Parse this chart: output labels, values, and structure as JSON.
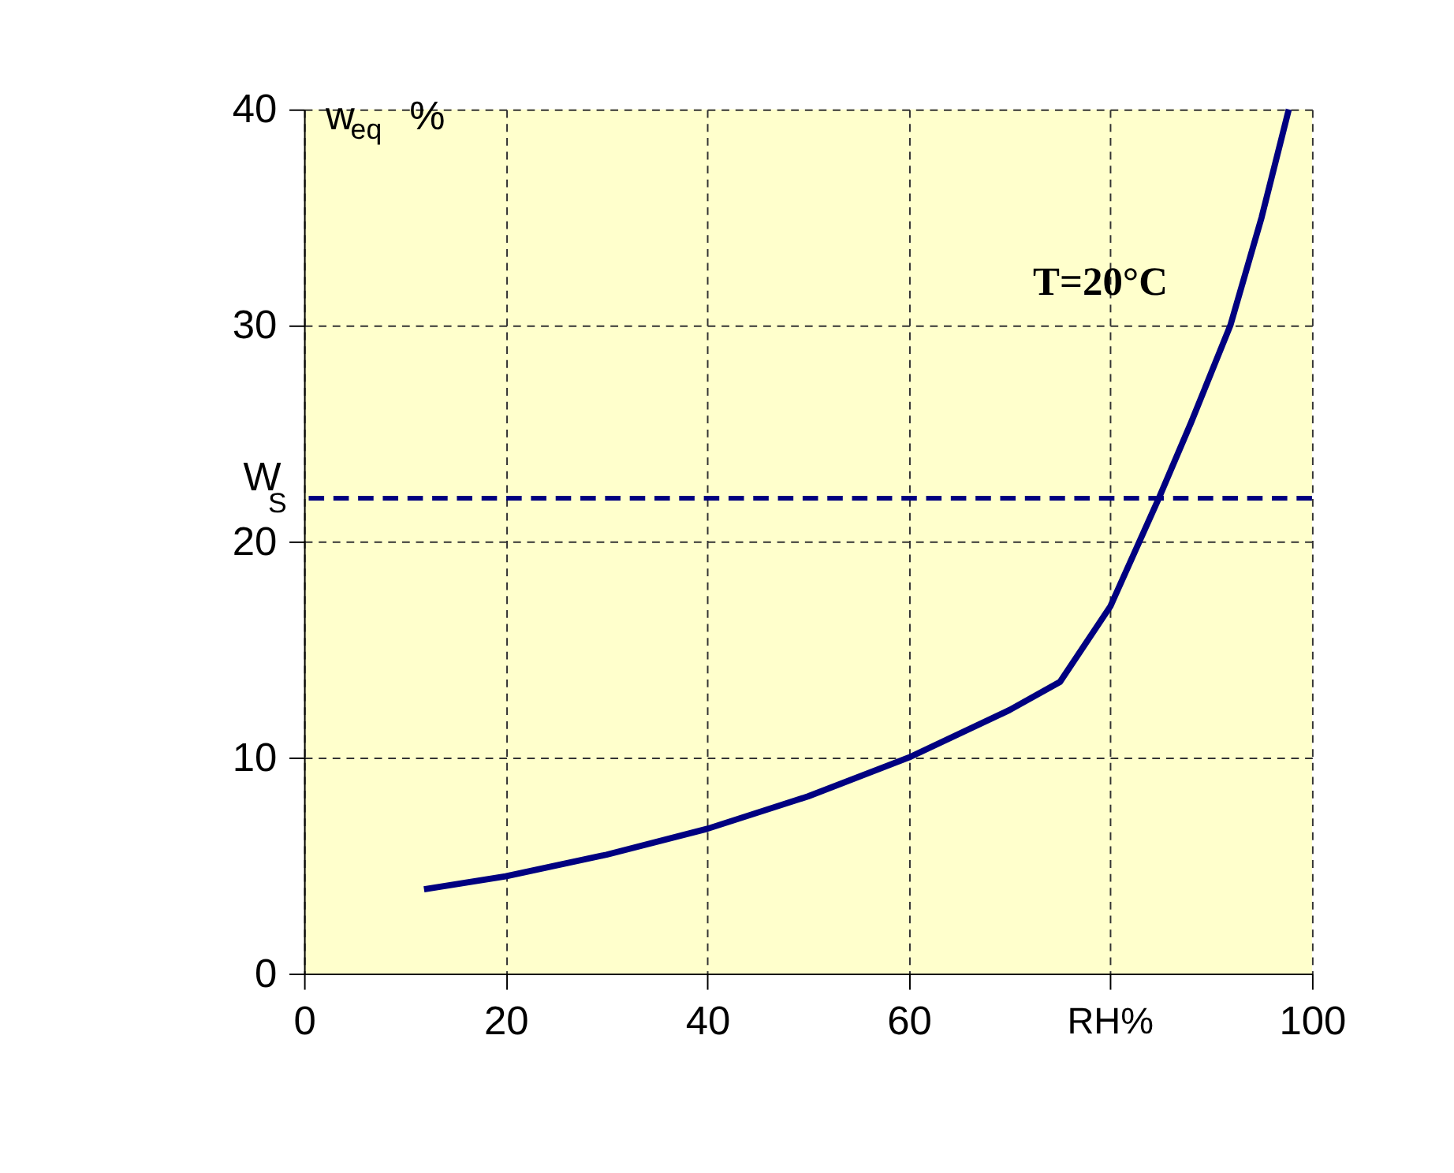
{
  "chart_data": {
    "type": "line",
    "xlabel": "RH%",
    "ylabel": "w$_{eq}$ %",
    "annotations": [
      "T=20°C"
    ],
    "series": [
      {
        "color": "#000080",
        "x": [
          11.9,
          20,
          30,
          40,
          50,
          60,
          70,
          75,
          80,
          84.8,
          88,
          91.9,
          95,
          97.7
        ],
        "values": [
          3.9,
          4.5,
          5.5,
          6.7,
          8.2,
          10,
          12.2,
          13.5,
          17,
          22,
          25.5,
          30,
          35,
          40
        ]
      }
    ],
    "ref_lines": [
      {
        "axis": "y",
        "value": 22,
        "label": "W$_{S}$",
        "color": "#000080",
        "line_style": "dashed"
      }
    ],
    "xlim": [
      0,
      100
    ],
    "xticks": [
      0,
      20,
      40,
      60,
      {
        "value": 80,
        "label": null
      },
      100
    ],
    "ylim": [
      0,
      40
    ],
    "yticks": [
      0,
      10,
      20,
      30,
      40
    ],
    "grid": true,
    "line_style": "solid",
    "marker": "none"
  }
}
